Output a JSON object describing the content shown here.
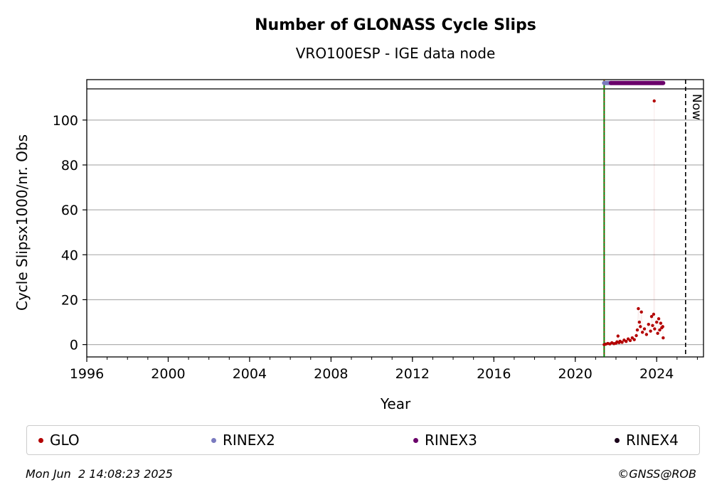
{
  "chart_data": {
    "type": "scatter",
    "title": "Number of GLONASS Cycle Slips",
    "subtitle": "VRO100ESP - IGE data node",
    "xlabel": "Year",
    "ylabel": "Cycle Slipsx1000/nr. Obs",
    "xlim": [
      1996,
      2026.3
    ],
    "ylim": [
      -5.5,
      118
    ],
    "x_ticks": [
      1996,
      2000,
      2004,
      2008,
      2012,
      2016,
      2020,
      2024
    ],
    "y_ticks": [
      0,
      20,
      40,
      60,
      80,
      100
    ],
    "grid": "horizontal",
    "now_label": "Now",
    "now_x": 2025.42,
    "vline_green_x": 2021.42,
    "rinex_bar_y": 116.5,
    "series": [
      {
        "name": "GLO",
        "color": "#b30000",
        "points": [
          [
            2021.42,
            0
          ],
          [
            2021.5,
            0.2
          ],
          [
            2021.6,
            0.5
          ],
          [
            2021.7,
            0.3
          ],
          [
            2021.8,
            0.8
          ],
          [
            2021.9,
            0.4
          ],
          [
            2022.0,
            0.6
          ],
          [
            2022.05,
            1.2
          ],
          [
            2022.1,
            3.8
          ],
          [
            2022.15,
            0.9
          ],
          [
            2022.2,
            1.5
          ],
          [
            2022.3,
            1.0
          ],
          [
            2022.4,
            2.0
          ],
          [
            2022.5,
            1.4
          ],
          [
            2022.6,
            2.5
          ],
          [
            2022.7,
            1.8
          ],
          [
            2022.8,
            3.0
          ],
          [
            2022.9,
            2.2
          ],
          [
            2023.0,
            4.0
          ],
          [
            2023.05,
            6.5
          ],
          [
            2023.1,
            16.0
          ],
          [
            2023.15,
            10.0
          ],
          [
            2023.2,
            8.0
          ],
          [
            2023.25,
            14.5
          ],
          [
            2023.3,
            5.5
          ],
          [
            2023.4,
            7.0
          ],
          [
            2023.5,
            4.5
          ],
          [
            2023.6,
            9.0
          ],
          [
            2023.7,
            6.0
          ],
          [
            2023.75,
            12.5
          ],
          [
            2023.8,
            8.5
          ],
          [
            2023.85,
            13.5
          ],
          [
            2023.88,
            108.5
          ],
          [
            2023.9,
            7.0
          ],
          [
            2024.0,
            10.0
          ],
          [
            2024.05,
            5.0
          ],
          [
            2024.1,
            11.5
          ],
          [
            2024.15,
            6.5
          ],
          [
            2024.2,
            9.5
          ],
          [
            2024.25,
            7.5
          ],
          [
            2024.3,
            8.0
          ],
          [
            2024.32,
            3.0
          ]
        ]
      },
      {
        "name": "RINEX2",
        "color": "#7a7abf",
        "range": [
          2021.42,
          2021.75
        ]
      },
      {
        "name": "RINEX3",
        "color": "#6a006a",
        "range": [
          2021.75,
          2024.32
        ]
      },
      {
        "name": "RINEX4",
        "color": "#1a001a",
        "range": null
      }
    ]
  },
  "legend": {
    "items": [
      "GLO",
      "RINEX2",
      "RINEX3",
      "RINEX4"
    ]
  },
  "footer": {
    "timestamp": "Mon Jun  2 14:08:23 2025",
    "credit": "©GNSS@ROB"
  }
}
